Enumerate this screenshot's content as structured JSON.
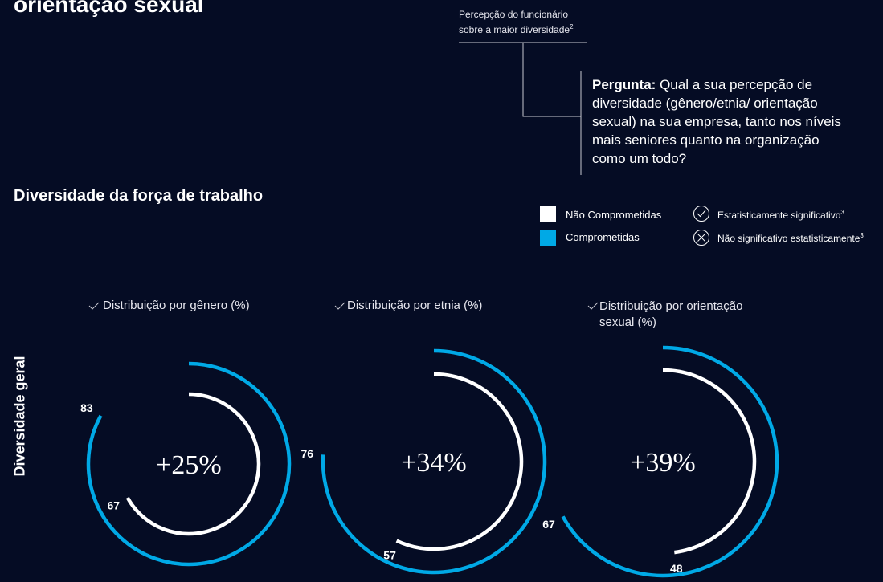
{
  "header": {
    "title": "orientação sexual"
  },
  "annotation": {
    "line1": "Percepção do funcionário",
    "line2": "sobre a maior diversidade",
    "sup": "2",
    "question_label": "Pergunta:",
    "question": "Qual a sua percepção de diversidade (gênero/etnia/ orientação sexual) na sua empresa, tanto nos níveis mais seniores quanto na organização como um todo?"
  },
  "section_title": "Diversidade da força de trabalho",
  "side_label": "Diversidade geral",
  "legend_notes": [
    {
      "text": "Estatisticamente significativo",
      "sup": "3"
    },
    {
      "text": "Não significativo estatisticamente",
      "sup": "3"
    }
  ],
  "chart_data": [
    {
      "type": "radial",
      "title": "Distribuição por gênero (%)",
      "center_label": "+25%",
      "series": [
        {
          "name": "Não Comprometidas",
          "color": "#ffffff",
          "values": [
            67
          ]
        },
        {
          "name": "Comprometidas",
          "color": "#00a9e6",
          "values": [
            83
          ]
        }
      ]
    },
    {
      "type": "radial",
      "title": "Distribuição por etnia (%)",
      "center_label": "+34%",
      "series": [
        {
          "name": "Não Comprometidas",
          "color": "#ffffff",
          "values": [
            57
          ]
        },
        {
          "name": "Comprometidas",
          "color": "#00a9e6",
          "values": [
            76
          ]
        }
      ]
    },
    {
      "type": "radial",
      "title": "Distribuição por orientação sexual (%)",
      "center_label": "+39%",
      "series": [
        {
          "name": "Não Comprometidas",
          "color": "#ffffff",
          "values": [
            48
          ]
        },
        {
          "name": "Comprometidas",
          "color": "#00a9e6",
          "values": [
            67
          ]
        }
      ]
    }
  ]
}
